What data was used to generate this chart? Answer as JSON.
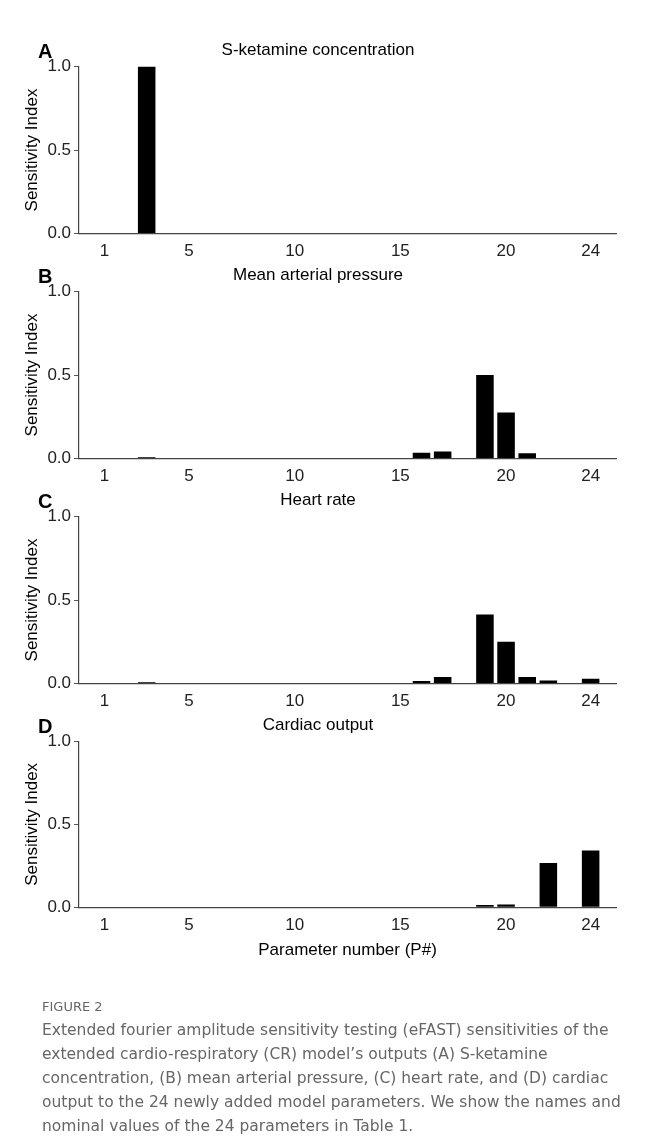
{
  "chart_data": [
    {
      "type": "bar",
      "title": "S-ketamine concentration",
      "ylabel": "Sensitivity Index",
      "annotations": [
        "A"
      ],
      "color": "#000000",
      "x": [
        1,
        2,
        3,
        4,
        5,
        6,
        7,
        8,
        9,
        10,
        11,
        12,
        13,
        14,
        15,
        16,
        17,
        18,
        19,
        20,
        21,
        22,
        23,
        24
      ],
      "values": [
        0,
        0,
        1.0,
        0,
        0,
        0,
        0,
        0,
        0,
        0,
        0,
        0,
        0,
        0,
        0,
        0,
        0,
        0,
        0,
        0,
        0,
        0,
        0,
        0
      ],
      "xlim": [
        -0.2,
        25.2
      ],
      "xticks": [
        1,
        5,
        10,
        15,
        20,
        24
      ],
      "ylim": [
        0,
        1
      ],
      "yticks": [
        {
          "value": 0,
          "label": "0.0"
        },
        {
          "value": 0.5,
          "label": "0.5"
        },
        {
          "value": 1,
          "label": "1.0"
        }
      ]
    },
    {
      "type": "bar",
      "title": "Mean arterial pressure",
      "ylabel": "Sensitivity Index",
      "annotations": [
        "B"
      ],
      "color": "#000000",
      "x": [
        1,
        2,
        3,
        4,
        5,
        6,
        7,
        8,
        9,
        10,
        11,
        12,
        13,
        14,
        15,
        16,
        17,
        18,
        19,
        20,
        21,
        22,
        23,
        24
      ],
      "values": [
        0,
        0,
        0.008,
        0,
        0,
        0,
        0,
        0,
        0,
        0,
        0,
        0,
        0,
        0,
        0,
        0.035,
        0.043,
        0,
        0.5,
        0.275,
        0.032,
        0,
        0,
        0.004
      ],
      "xlim": [
        -0.2,
        25.2
      ],
      "xticks": [
        1,
        5,
        10,
        15,
        20,
        24
      ],
      "ylim": [
        0,
        1
      ],
      "yticks": [
        {
          "value": 0,
          "label": "0.0"
        },
        {
          "value": 0.5,
          "label": "0.5"
        },
        {
          "value": 1,
          "label": "1.0"
        }
      ]
    },
    {
      "type": "bar",
      "title": "Heart rate",
      "ylabel": "Sensitivity Index",
      "annotations": [
        "C"
      ],
      "color": "#000000",
      "x": [
        1,
        2,
        3,
        4,
        5,
        6,
        7,
        8,
        9,
        10,
        11,
        12,
        13,
        14,
        15,
        16,
        17,
        18,
        19,
        20,
        21,
        22,
        23,
        24
      ],
      "values": [
        0,
        0,
        0.008,
        0,
        0,
        0,
        0,
        0,
        0,
        0,
        0,
        0,
        0,
        0,
        0,
        0.016,
        0.04,
        0,
        0.414,
        0.251,
        0.04,
        0.019,
        0,
        0.029
      ],
      "xlim": [
        -0.2,
        25.2
      ],
      "xticks": [
        1,
        5,
        10,
        15,
        20,
        24
      ],
      "ylim": [
        0,
        1
      ],
      "yticks": [
        {
          "value": 0,
          "label": "0.0"
        },
        {
          "value": 0.5,
          "label": "0.5"
        },
        {
          "value": 1,
          "label": "1.0"
        }
      ]
    },
    {
      "type": "bar",
      "title": "Cardiac output",
      "ylabel": "Sensitivity Index",
      "xlabel": "Parameter number (P#)",
      "annotations": [
        "D",
        "FIGURE 2",
        "Extended fourier amplitude sensitivity testing (eFAST) sensitivities of the extended cardio-respiratory (CR) model’s outputs (A) S-ketamine concentration, (B) mean arterial pressure, (C) heart rate, and (D) cardiac output to the 24 newly added model parameters. We show the names and nominal values of the 24 parameters in Table 1."
      ],
      "color": "#000000",
      "x": [
        1,
        2,
        3,
        4,
        5,
        6,
        7,
        8,
        9,
        10,
        11,
        12,
        13,
        14,
        15,
        16,
        17,
        18,
        19,
        20,
        21,
        22,
        23,
        24
      ],
      "values": [
        0,
        0,
        0,
        0,
        0,
        0,
        0,
        0,
        0,
        0,
        0,
        0.002,
        0,
        0,
        0,
        0,
        0,
        0,
        0.013,
        0.016,
        0.003,
        0.267,
        0,
        0.342
      ],
      "xlim": [
        -0.2,
        25.2
      ],
      "xticks": [
        1,
        5,
        10,
        15,
        20,
        24
      ],
      "ylim": [
        0,
        1
      ],
      "yticks": [
        {
          "value": 0,
          "label": "0.0"
        },
        {
          "value": 0.5,
          "label": "0.5"
        },
        {
          "value": 1,
          "label": "1.0"
        }
      ]
    }
  ]
}
